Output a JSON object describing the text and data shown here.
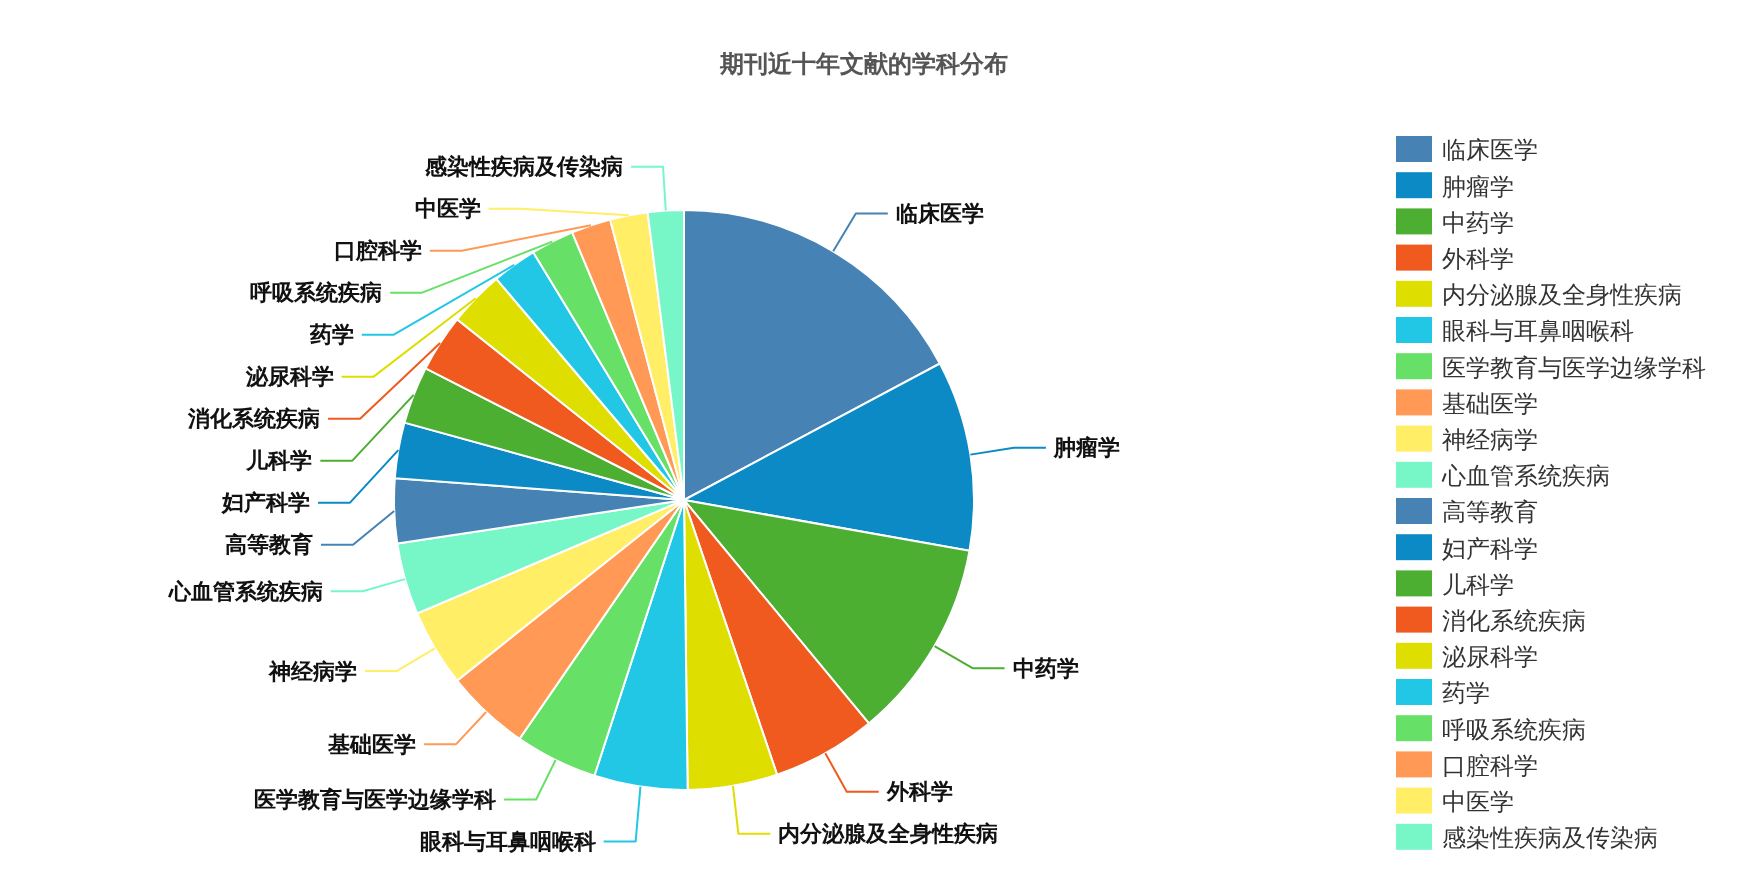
{
  "chart_data": {
    "type": "pie",
    "title": "期刊近十年文献的学科分布",
    "categories": [
      "临床医学",
      "肿瘤学",
      "中药学",
      "外科学",
      "内分泌腺及全身性疾病",
      "眼科与耳鼻咽喉科",
      "医学教育与医学边缘学科",
      "基础医学",
      "神经病学",
      "心血管系统疾病",
      "高等教育",
      "妇产科学",
      "儿科学",
      "消化系统疾病",
      "泌尿科学",
      "药学",
      "呼吸系统疾病",
      "口腔科学",
      "中医学",
      "感染性疾病及传染病"
    ],
    "values": [
      17.2,
      10.6,
      11.2,
      5.8,
      5.0,
      5.2,
      4.6,
      4.7,
      4.3,
      4.0,
      3.6,
      3.1,
      3.2,
      3.2,
      3.1,
      2.5,
      2.4,
      2.2,
      2.1,
      2.0
    ],
    "colors": [
      "#4682b4",
      "#0b8ac5",
      "#4caf32",
      "#f05a1e",
      "#dede00",
      "#22c7e5",
      "#66e066",
      "#ff9955",
      "#ffee66",
      "#77f7c8",
      "#4682b4",
      "#0b8ac5",
      "#4caf32",
      "#f05a1e",
      "#dede00",
      "#22c7e5",
      "#66e066",
      "#ff9955",
      "#ffee66",
      "#77f7c8"
    ],
    "legend": "right"
  }
}
